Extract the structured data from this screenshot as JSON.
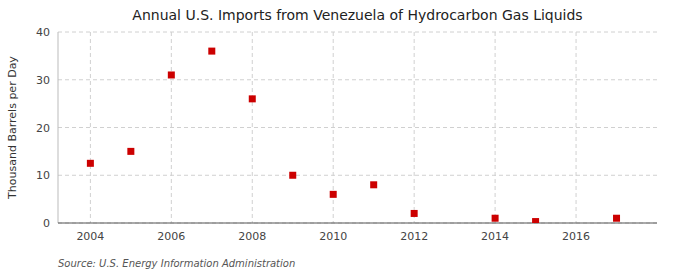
{
  "chart_data": {
    "type": "scatter",
    "title": "Annual U.S. Imports from Venezuela of Hydrocarbon Gas Liquids",
    "ylabel": "Thousand Barrels per Day",
    "annotations": [
      "Source: U.S. Energy Information Administration"
    ],
    "x": [
      2004,
      2005,
      2006,
      2007,
      2008,
      2009,
      2010,
      2011,
      2012,
      2014,
      2015,
      2017
    ],
    "values": [
      12.5,
      15,
      31,
      36,
      26,
      10,
      6,
      8,
      2,
      1,
      0.3,
      1
    ],
    "color": "#cc0000",
    "marker": "square",
    "xlim": [
      2003.2,
      2018
    ],
    "ylim": [
      0,
      40
    ],
    "xticks": [
      2004,
      2006,
      2008,
      2010,
      2012,
      2014,
      2016
    ],
    "yticks": [
      0,
      10,
      20,
      30,
      40
    ],
    "grid": true
  }
}
